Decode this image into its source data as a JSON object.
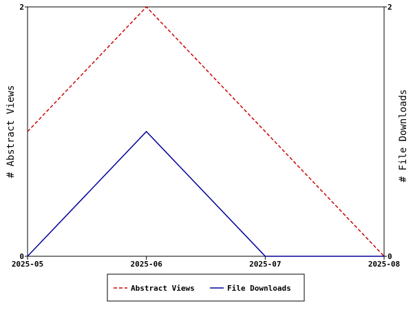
{
  "chart_data": {
    "type": "line",
    "x": [
      "2025-05",
      "2025-06",
      "2025-07",
      "2025-08"
    ],
    "series": [
      {
        "name": "Abstract Views",
        "axis": "left",
        "values": [
          1,
          2,
          1,
          0
        ],
        "color": "#cc0000",
        "style": "dashed"
      },
      {
        "name": "File Downloads",
        "axis": "right",
        "values": [
          0,
          1,
          0,
          0
        ],
        "color": "#000099",
        "style": "solid"
      }
    ],
    "ylabel_left": "# Abstract Views",
    "ylabel_right": "# File Downloads",
    "ylim_left": [
      0,
      2
    ],
    "ylim_right": [
      0,
      2
    ],
    "y_ticks_left": [
      "0",
      "2"
    ],
    "y_ticks_right": [
      "0",
      "2"
    ],
    "grid": false,
    "legend_position": "bottom-center"
  }
}
